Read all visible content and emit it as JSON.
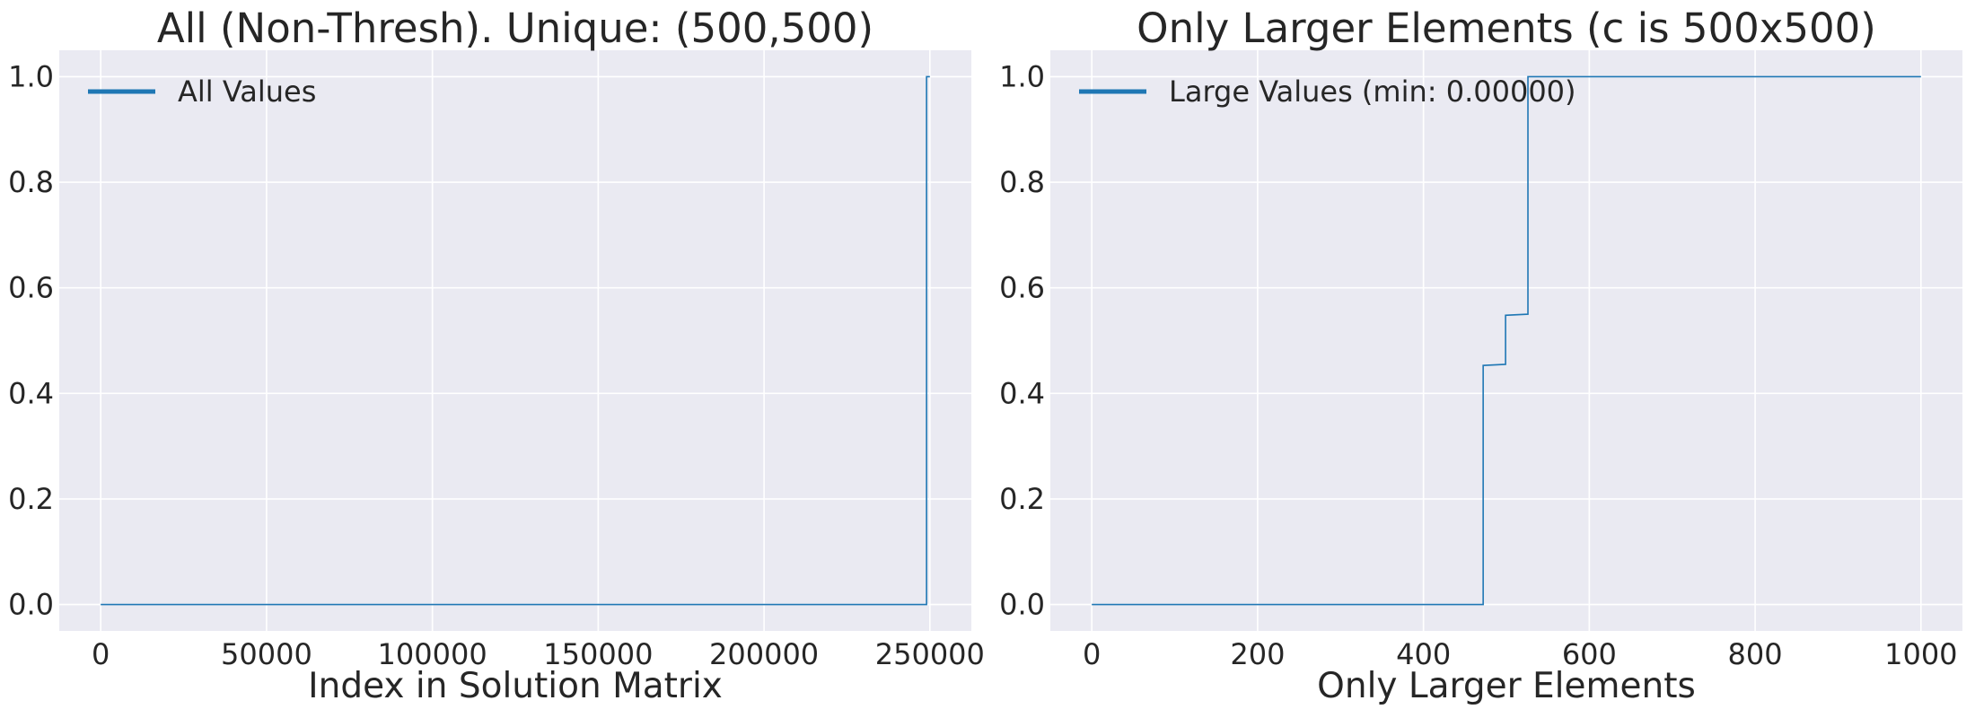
{
  "chart_data": [
    {
      "type": "line",
      "title": "All (Non-Thresh). Unique: (500,500)",
      "xlabel": "Index in Solution Matrix",
      "ylabel": "",
      "xlim": [
        -12500,
        262500
      ],
      "ylim": [
        -0.05,
        1.05
      ],
      "xticks": [
        0,
        50000,
        100000,
        150000,
        200000,
        250000
      ],
      "xtick_labels": [
        "0",
        "50000",
        "100000",
        "150000",
        "200000",
        "250000"
      ],
      "yticks": [
        0.0,
        0.2,
        0.4,
        0.6,
        0.8,
        1.0
      ],
      "ytick_labels": [
        "0.0",
        "0.2",
        "0.4",
        "0.6",
        "0.8",
        "1.0"
      ],
      "grid": true,
      "legend_position": "top-left",
      "series": [
        {
          "name": "All Values",
          "x": [
            0,
            249000,
            249000,
            250000
          ],
          "y": [
            0.0,
            0.0,
            1.0,
            1.0
          ]
        }
      ]
    },
    {
      "type": "line",
      "title": "Only Larger Elements (c is 500x500)",
      "xlabel": "Only Larger Elements",
      "ylabel": "",
      "xlim": [
        -50,
        1050
      ],
      "ylim": [
        -0.05,
        1.05
      ],
      "xticks": [
        0,
        200,
        400,
        600,
        800,
        1000
      ],
      "xtick_labels": [
        "0",
        "200",
        "400",
        "600",
        "800",
        "1000"
      ],
      "yticks": [
        0.0,
        0.2,
        0.4,
        0.6,
        0.8,
        1.0
      ],
      "ytick_labels": [
        "0.0",
        "0.2",
        "0.4",
        "0.6",
        "0.8",
        "1.0"
      ],
      "grid": true,
      "legend_position": "top-left",
      "series": [
        {
          "name": "Large Values (min: 0.00000)",
          "x": [
            0,
            472,
            472,
            499,
            499,
            526,
            526,
            1000
          ],
          "y": [
            0.0,
            0.0,
            0.453,
            0.455,
            0.548,
            0.55,
            1.0,
            1.0
          ]
        }
      ]
    }
  ]
}
